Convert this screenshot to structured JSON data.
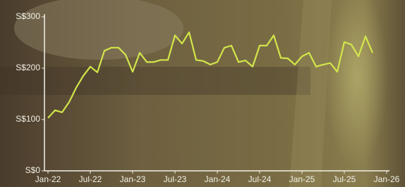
{
  "chart_data": {
    "type": "line",
    "categories": [
      "Jan-22",
      null,
      null,
      null,
      null,
      null,
      "Jul-22",
      null,
      null,
      null,
      null,
      null,
      "Jan-23",
      null,
      null,
      null,
      null,
      null,
      "Jul-23",
      null,
      null,
      null,
      null,
      null,
      "Jan-24",
      null,
      null,
      null,
      null,
      null,
      "Jul-24",
      null,
      null,
      null,
      null,
      null,
      "Jan-25",
      null,
      null,
      null,
      null,
      null,
      "Jul-25",
      null,
      null,
      null,
      null,
      null,
      "Jan-26"
    ],
    "values": [
      103,
      118,
      114,
      134,
      162,
      185,
      203,
      192,
      234,
      240,
      240,
      226,
      193,
      230,
      212,
      212,
      216,
      216,
      264,
      248,
      270,
      216,
      214,
      207,
      212,
      240,
      244,
      212,
      215,
      203,
      244,
      244,
      264,
      220,
      219,
      207,
      223,
      230,
      203,
      207,
      210,
      193,
      251,
      246,
      223,
      262,
      230,
      null,
      null
    ],
    "color": "#d2e64a",
    "ylim": [
      0,
      300
    ],
    "yticks": [
      {
        "value": 0,
        "label": "S$0"
      },
      {
        "value": 100,
        "label": "S$100"
      },
      {
        "value": 200,
        "label": "S$200"
      },
      {
        "value": 300,
        "label": "S$300"
      }
    ]
  }
}
